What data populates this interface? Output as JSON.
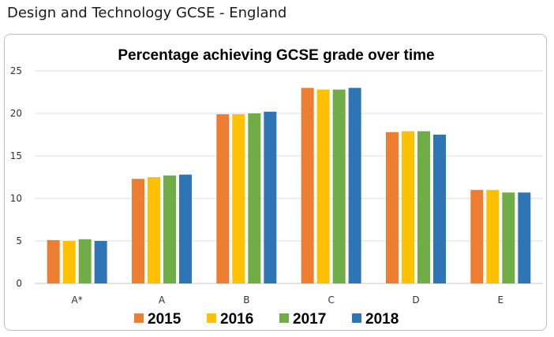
{
  "page": {
    "title": "Design and Technology GCSE - England"
  },
  "chart_data": {
    "type": "bar",
    "title": "Percentage achieving GCSE grade over time",
    "xlabel": "",
    "ylabel": "",
    "categories": [
      "A*",
      "A",
      "B",
      "C",
      "D",
      "E"
    ],
    "series": [
      {
        "name": "2015",
        "color": "#ED7D31",
        "values": [
          5.1,
          12.3,
          19.9,
          23.0,
          17.8,
          11.0
        ]
      },
      {
        "name": "2016",
        "color": "#FFC000",
        "values": [
          5.0,
          12.5,
          19.9,
          22.8,
          17.9,
          11.0
        ]
      },
      {
        "name": "2017",
        "color": "#70AD47",
        "values": [
          5.2,
          12.7,
          20.0,
          22.8,
          17.9,
          10.7
        ]
      },
      {
        "name": "2018",
        "color": "#2E75B6",
        "values": [
          5.0,
          12.8,
          20.2,
          23.0,
          17.5,
          10.7
        ]
      }
    ],
    "ylim": [
      0,
      25
    ],
    "yticks": [
      0,
      5,
      10,
      15,
      20,
      25
    ],
    "grid": true,
    "legend_position": "bottom"
  }
}
